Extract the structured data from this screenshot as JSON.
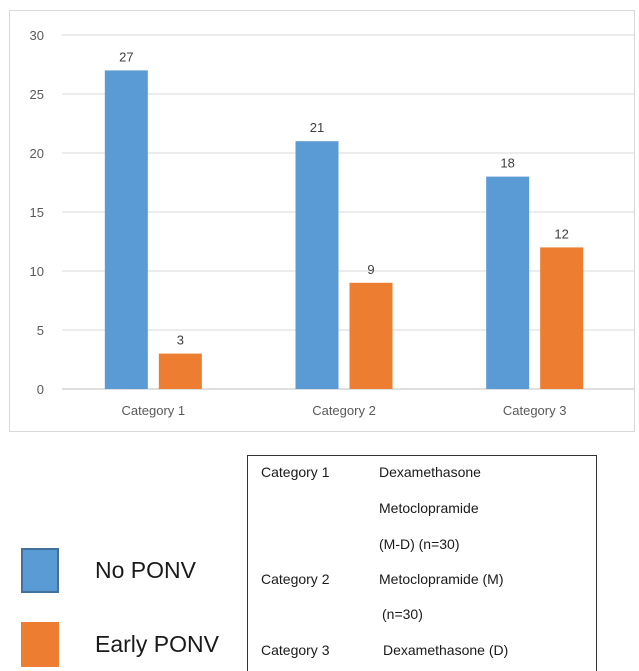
{
  "chart_data": {
    "type": "bar",
    "categories": [
      "Category 1",
      "Category 2",
      "Category 3"
    ],
    "series": [
      {
        "name": "No PONV",
        "values": [
          27,
          21,
          18
        ],
        "color": "#5b9bd5"
      },
      {
        "name": "Early PONV",
        "values": [
          3,
          9,
          12
        ],
        "color": "#ed7d31"
      }
    ],
    "ylim": [
      0,
      30
    ],
    "yticks": [
      0,
      5,
      10,
      15,
      20,
      25,
      30
    ],
    "grid": true,
    "data_labels": true
  },
  "legend": {
    "items": [
      {
        "label": "No PONV",
        "color": "#5b9bd5",
        "border": "#41719c"
      },
      {
        "label": "Early PONV",
        "color": "#ed7d31"
      }
    ]
  },
  "key": {
    "rows": [
      {
        "name": "Category 1",
        "lines": [
          "Dexamethasone",
          "Metoclopramide",
          "(M-D) (n=30)"
        ]
      },
      {
        "name": "Category 2",
        "lines": [
          "Metoclopramide (M)",
          "(n=30)"
        ]
      },
      {
        "name": "Category 3",
        "lines": [
          "Dexamethasone (D)"
        ]
      }
    ]
  }
}
